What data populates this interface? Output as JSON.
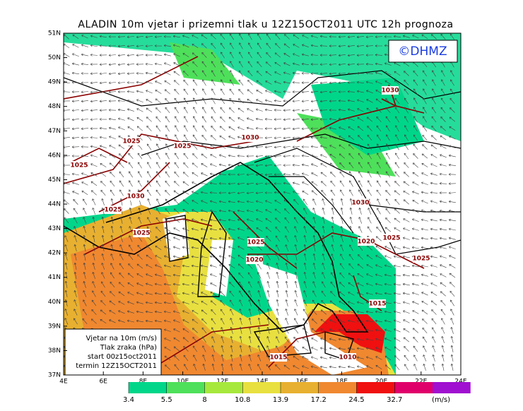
{
  "header": {
    "title": "ALADIN 10m vjetar i prizemni tlak u 12Z15OCT2011 UTC 12h prognoza",
    "copyright": "©DHMZ"
  },
  "map": {
    "lat_labels": [
      "51N",
      "50N",
      "49N",
      "48N",
      "47N",
      "46N",
      "45N",
      "44N",
      "43N",
      "42N",
      "41N",
      "40N",
      "39N",
      "38N",
      "37N"
    ],
    "lon_labels": [
      "4E",
      "6E",
      "8E",
      "10E",
      "12E",
      "14E",
      "16E",
      "18E",
      "20E",
      "22E",
      "24E"
    ],
    "isobar_labels": [
      1030,
      1025,
      1025,
      1030,
      1025,
      1030,
      1025,
      1030,
      1025,
      1025,
      1020,
      1025,
      1025,
      1020,
      1015,
      1010,
      1015
    ]
  },
  "legend": {
    "lines": [
      "Vjetar na 10m (m/s)",
      "Tlak zraka (hPa)",
      "start 00z15oct2011",
      "termin 12Z15OCT2011"
    ]
  },
  "colorbar": {
    "ticks": [
      3.4,
      5.5,
      8,
      10.8,
      13.9,
      17.2,
      24.5,
      32.7
    ],
    "unit": "(m/s)",
    "colors": [
      "#00d68a",
      "#4ee05a",
      "#a6e83c",
      "#e8e040",
      "#e8b030",
      "#f08830",
      "#f01010",
      "#e0006a",
      "#a010d0"
    ]
  }
}
